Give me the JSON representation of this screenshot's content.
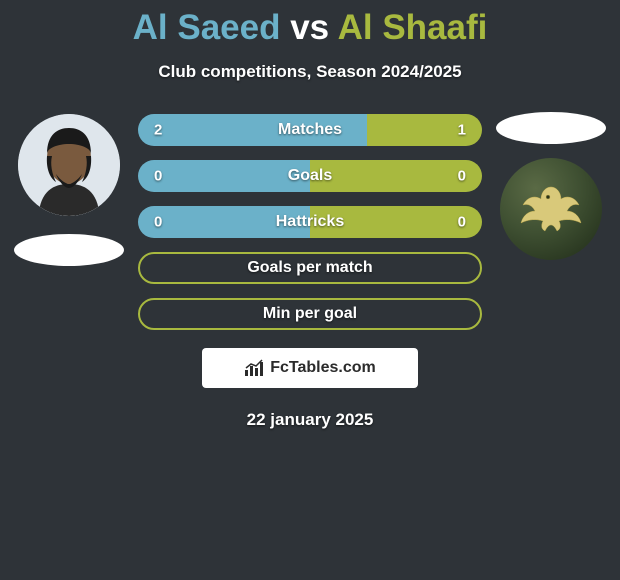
{
  "background_color": "#2e3338",
  "title": {
    "player1": "Al Saeed",
    "vs": "vs",
    "player2": "Al Shaafi",
    "color_player1": "#6bb1c9",
    "color_vs": "#ffffff",
    "color_player2": "#a8b93f",
    "fontsize": 35
  },
  "subtitle": {
    "text": "Club competitions, Season 2024/2025",
    "color": "#ffffff",
    "fontsize": 17
  },
  "players": {
    "left": {
      "avatar_bg": "#d9e0e6",
      "flag_color": "#ffffff"
    },
    "right": {
      "badge_gradient": [
        "#5a6a45",
        "#3f5032",
        "#1e2a17"
      ],
      "eagle_color": "#d9c97a",
      "flag_color": "#ffffff"
    }
  },
  "bars": {
    "height": 32,
    "radius": 16,
    "gap": 14,
    "label_color": "#ffffff",
    "label_fontsize": 16,
    "value_fontsize": 15,
    "color_left": "#6bb1c9",
    "color_right": "#a8b93f",
    "neutral_border": "#a8b93f",
    "items": [
      {
        "label": "Matches",
        "left": "2",
        "right": "1",
        "left_pct": 66.7,
        "right_pct": 33.3,
        "split": true
      },
      {
        "label": "Goals",
        "left": "0",
        "right": "0",
        "left_pct": 50,
        "right_pct": 50,
        "split": true
      },
      {
        "label": "Hattricks",
        "left": "0",
        "right": "0",
        "left_pct": 50,
        "right_pct": 50,
        "split": true
      },
      {
        "label": "Goals per match",
        "left": "",
        "right": "",
        "split": false
      },
      {
        "label": "Min per goal",
        "left": "",
        "right": "",
        "split": false
      }
    ]
  },
  "brand": {
    "text": "FcTables.com",
    "box_bg": "#ffffff",
    "text_color": "#2b2b2b",
    "icon_color": "#2b2b2b"
  },
  "date": {
    "text": "22 january 2025",
    "color": "#ffffff",
    "fontsize": 17
  }
}
